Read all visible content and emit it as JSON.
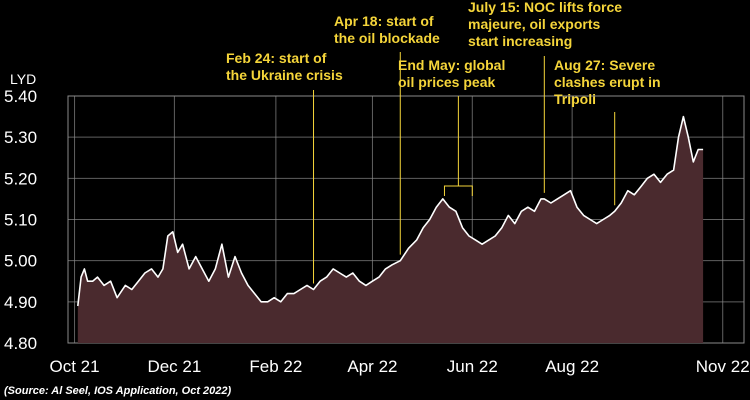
{
  "chart_data": {
    "type": "area",
    "ylabel": "LYD",
    "ylim": [
      4.8,
      5.4
    ],
    "yticks": [
      "5.40",
      "5.30",
      "5.20",
      "5.10",
      "5.00",
      "4.90",
      "4.80"
    ],
    "yticks_values": [
      5.4,
      5.3,
      5.2,
      5.1,
      5.0,
      4.9,
      4.8
    ],
    "xticks": [
      "Oct 21",
      "Dec 21",
      "Feb 22",
      "Apr 22",
      "Jun 22",
      "Aug 22",
      "Nov 22"
    ],
    "xticks_dates": [
      "2021-10-01",
      "2021-12-01",
      "2022-02-01",
      "2022-04-01",
      "2022-06-01",
      "2022-08-01",
      "2022-11-01"
    ],
    "xlim": [
      "2021-09-27",
      "2022-11-14"
    ],
    "grid": true,
    "colors": {
      "line": "#ffffff",
      "fill": "#4a2a2e",
      "annotation": "#f5d53a",
      "grid": "#8a8a8a",
      "background": "#000000"
    },
    "series": [
      {
        "x": [
          "2021-10-03",
          "2021-10-05",
          "2021-10-07",
          "2021-10-09",
          "2021-10-12",
          "2021-10-15",
          "2021-10-19",
          "2021-10-23",
          "2021-10-27",
          "2021-11-01",
          "2021-11-05",
          "2021-11-09",
          "2021-11-13",
          "2021-11-17",
          "2021-11-21",
          "2021-11-24",
          "2021-11-27",
          "2021-11-30",
          "2021-12-03",
          "2021-12-06",
          "2021-12-10",
          "2021-12-14",
          "2021-12-18",
          "2021-12-22",
          "2021-12-26",
          "2021-12-30",
          "2022-01-03",
          "2022-01-07",
          "2022-01-11",
          "2022-01-15",
          "2022-01-19",
          "2022-01-23",
          "2022-01-27",
          "2022-01-31",
          "2022-02-04",
          "2022-02-08",
          "2022-02-12",
          "2022-02-16",
          "2022-02-20",
          "2022-02-24",
          "2022-02-28",
          "2022-03-04",
          "2022-03-08",
          "2022-03-12",
          "2022-03-16",
          "2022-03-20",
          "2022-03-24",
          "2022-03-28",
          "2022-04-01",
          "2022-04-05",
          "2022-04-09",
          "2022-04-13",
          "2022-04-18",
          "2022-04-23",
          "2022-04-28",
          "2022-05-02",
          "2022-05-06",
          "2022-05-10",
          "2022-05-14",
          "2022-05-18",
          "2022-05-22",
          "2022-05-26",
          "2022-05-30",
          "2022-06-03",
          "2022-06-07",
          "2022-06-11",
          "2022-06-15",
          "2022-06-19",
          "2022-06-23",
          "2022-06-27",
          "2022-07-01",
          "2022-07-05",
          "2022-07-09",
          "2022-07-13",
          "2022-07-15",
          "2022-07-19",
          "2022-07-23",
          "2022-07-27",
          "2022-07-31",
          "2022-08-04",
          "2022-08-08",
          "2022-08-12",
          "2022-08-16",
          "2022-08-20",
          "2022-08-24",
          "2022-08-27",
          "2022-08-31",
          "2022-09-04",
          "2022-09-08",
          "2022-09-12",
          "2022-09-16",
          "2022-09-20",
          "2022-09-24",
          "2022-09-28",
          "2022-10-02",
          "2022-10-05",
          "2022-10-08",
          "2022-10-11",
          "2022-10-14",
          "2022-10-17",
          "2022-10-20"
        ],
        "y": [
          4.89,
          4.96,
          4.98,
          4.95,
          4.95,
          4.96,
          4.94,
          4.95,
          4.91,
          4.94,
          4.93,
          4.95,
          4.97,
          4.98,
          4.96,
          4.98,
          5.06,
          5.07,
          5.02,
          5.04,
          4.98,
          5.01,
          4.98,
          4.95,
          4.98,
          5.04,
          4.96,
          5.01,
          4.97,
          4.94,
          4.92,
          4.9,
          4.9,
          4.91,
          4.9,
          4.92,
          4.92,
          4.93,
          4.94,
          4.93,
          4.95,
          4.96,
          4.98,
          4.97,
          4.96,
          4.97,
          4.95,
          4.94,
          4.95,
          4.96,
          4.98,
          4.99,
          5.0,
          5.03,
          5.05,
          5.08,
          5.1,
          5.13,
          5.15,
          5.13,
          5.12,
          5.08,
          5.06,
          5.05,
          5.04,
          5.05,
          5.06,
          5.08,
          5.11,
          5.09,
          5.12,
          5.13,
          5.12,
          5.15,
          5.15,
          5.14,
          5.15,
          5.16,
          5.17,
          5.13,
          5.11,
          5.1,
          5.09,
          5.1,
          5.11,
          5.12,
          5.14,
          5.17,
          5.16,
          5.18,
          5.2,
          5.21,
          5.19,
          5.21,
          5.22,
          5.3,
          5.35,
          5.3,
          5.24,
          5.27,
          5.27
        ]
      }
    ],
    "annotations": [
      {
        "date": "2022-02-24",
        "lines": [
          "Feb 24: start of",
          "the Ukraine crisis"
        ]
      },
      {
        "date": "2022-04-18",
        "lines": [
          "Apr 18: start of",
          "the oil blockade"
        ]
      },
      {
        "date_range": [
          "2022-05-15",
          "2022-06-01"
        ],
        "lines": [
          "End May: global",
          "oil prices peak"
        ]
      },
      {
        "date": "2022-07-15",
        "lines": [
          "July 15: NOC lifts force",
          "majeure, oil exports",
          "start increasing"
        ]
      },
      {
        "date": "2022-08-27",
        "lines": [
          "Aug 27: Severe",
          "clashes erupt in",
          "Tripoli"
        ]
      }
    ],
    "source": "(Source: Al Seel, IOS Application, Oct 2022)"
  }
}
